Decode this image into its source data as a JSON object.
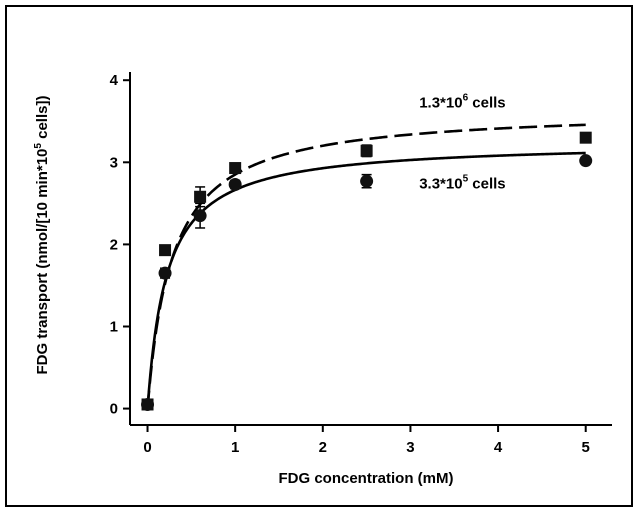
{
  "chart_data": {
    "type": "scatter",
    "title": "",
    "xlabel": "FDG concentration (mM)",
    "ylabel": {
      "main": "FDG transport (nmol/[10 min*10",
      "sup": "5",
      "tail": " cells])"
    },
    "xlim": [
      -0.2,
      5.3
    ],
    "ylim": [
      -0.2,
      4.1
    ],
    "xticks": [
      0,
      1,
      2,
      3,
      4,
      5
    ],
    "yticks": [
      0,
      1,
      2,
      3,
      4
    ],
    "grid": false,
    "series": [
      {
        "key": "high_density",
        "marker": "square",
        "line": "dashed",
        "points": [
          {
            "x": 0,
            "y": 0.05,
            "err": 0
          },
          {
            "x": 0.2,
            "y": 1.93,
            "err": 0.05
          },
          {
            "x": 0.6,
            "y": 2.58,
            "err": 0.12
          },
          {
            "x": 1.0,
            "y": 2.93,
            "err": 0.05
          },
          {
            "x": 2.5,
            "y": 3.14,
            "err": 0.07
          },
          {
            "x": 5.0,
            "y": 3.3,
            "err": 0.04
          }
        ],
        "fit": {
          "model": "michaelis-menten",
          "vmax": 3.65,
          "km": 0.28
        }
      },
      {
        "key": "low_density",
        "marker": "circle",
        "line": "solid",
        "points": [
          {
            "x": 0,
            "y": 0.05,
            "err": 0
          },
          {
            "x": 0.2,
            "y": 1.65,
            "err": 0.06
          },
          {
            "x": 0.6,
            "y": 2.35,
            "err": 0.15
          },
          {
            "x": 1.0,
            "y": 2.73,
            "err": 0.05
          },
          {
            "x": 2.5,
            "y": 2.77,
            "err": 0.08
          },
          {
            "x": 5.0,
            "y": 3.02,
            "err": 0.04
          }
        ],
        "fit": {
          "model": "michaelis-menten",
          "vmax": 3.25,
          "km": 0.22
        }
      }
    ],
    "annotations": [
      {
        "key": "high_density_label",
        "base": "1.3*10",
        "sup": "6",
        "tail": " cells",
        "anchor_x": 3.1,
        "anchor_y": 3.67
      },
      {
        "key": "low_density_label",
        "base": "3.3*10",
        "sup": "5",
        "tail": " cells",
        "anchor_x": 3.1,
        "anchor_y": 2.68
      }
    ]
  }
}
